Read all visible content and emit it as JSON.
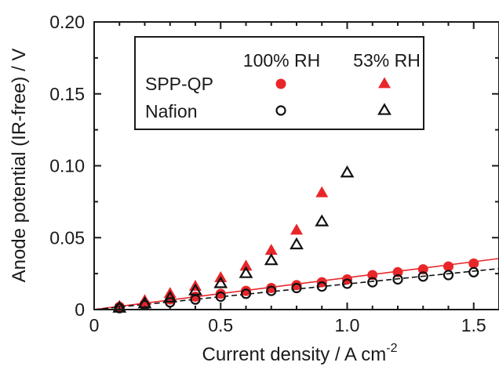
{
  "chart_data": {
    "type": "scatter",
    "title": "",
    "xlabel": "Current density / A cm",
    "xlabel_superscript": "-2",
    "ylabel": "Anode potential (IR-free) / V",
    "xlim": [
      0,
      1.6
    ],
    "ylim": [
      0,
      0.2
    ],
    "x_ticks": [
      0,
      0.5,
      1.0,
      1.5
    ],
    "x_tick_labels": [
      "0",
      "0.5",
      "1.0",
      "1.5"
    ],
    "y_ticks": [
      0,
      0.05,
      0.1,
      0.15,
      0.2
    ],
    "y_tick_labels": [
      "0",
      "0.05",
      "0.10",
      "0.15",
      "0.20"
    ],
    "grid": false,
    "legend": {
      "placement": "top-right",
      "column_headers": [
        "100% RH",
        "53% RH"
      ],
      "row_labels": [
        "SPP-QP",
        "Nafion"
      ]
    },
    "colors": {
      "spp_qp": "#e8262a",
      "nafion": "#111111"
    },
    "series": [
      {
        "material": "SPP-QP",
        "rh": "100% RH",
        "marker": "filled-circle",
        "color": "#e8262a",
        "x": [
          0.1,
          0.2,
          0.3,
          0.4,
          0.5,
          0.6,
          0.7,
          0.8,
          0.9,
          1.0,
          1.1,
          1.2,
          1.3,
          1.4,
          1.5
        ],
        "y": [
          0.002,
          0.004,
          0.007,
          0.009,
          0.011,
          0.013,
          0.015,
          0.017,
          0.019,
          0.021,
          0.024,
          0.026,
          0.028,
          0.03,
          0.032
        ]
      },
      {
        "material": "SPP-QP",
        "rh": "53% RH",
        "marker": "filled-triangle",
        "color": "#e8262a",
        "x": [
          0.1,
          0.2,
          0.3,
          0.4,
          0.5,
          0.6,
          0.7,
          0.8,
          0.9
        ],
        "y": [
          0.002,
          0.006,
          0.011,
          0.016,
          0.022,
          0.03,
          0.041,
          0.055,
          0.081
        ]
      },
      {
        "material": "Nafion",
        "rh": "100% RH",
        "marker": "open-circle",
        "color": "#111111",
        "x": [
          0.1,
          0.2,
          0.3,
          0.4,
          0.5,
          0.6,
          0.7,
          0.8,
          0.9,
          1.0,
          1.1,
          1.2,
          1.3,
          1.4,
          1.5
        ],
        "y": [
          0.001,
          0.003,
          0.005,
          0.007,
          0.009,
          0.011,
          0.013,
          0.015,
          0.016,
          0.018,
          0.019,
          0.021,
          0.023,
          0.024,
          0.026
        ]
      },
      {
        "material": "Nafion",
        "rh": "53% RH",
        "marker": "open-triangle",
        "color": "#111111",
        "x": [
          0.1,
          0.2,
          0.3,
          0.4,
          0.5,
          0.6,
          0.7,
          0.8,
          0.9,
          1.0
        ],
        "y": [
          0.001,
          0.004,
          0.008,
          0.013,
          0.018,
          0.025,
          0.034,
          0.045,
          0.061,
          0.095
        ]
      }
    ],
    "fit_lines": [
      {
        "material": "SPP-QP",
        "style": "solid",
        "color": "#e8262a",
        "x": [
          0,
          1.6
        ],
        "y": [
          0.0,
          0.0355
        ]
      },
      {
        "material": "Nafion",
        "style": "dashed",
        "color": "#111111",
        "x": [
          0,
          1.6
        ],
        "y": [
          0.0,
          0.0285
        ]
      }
    ]
  }
}
